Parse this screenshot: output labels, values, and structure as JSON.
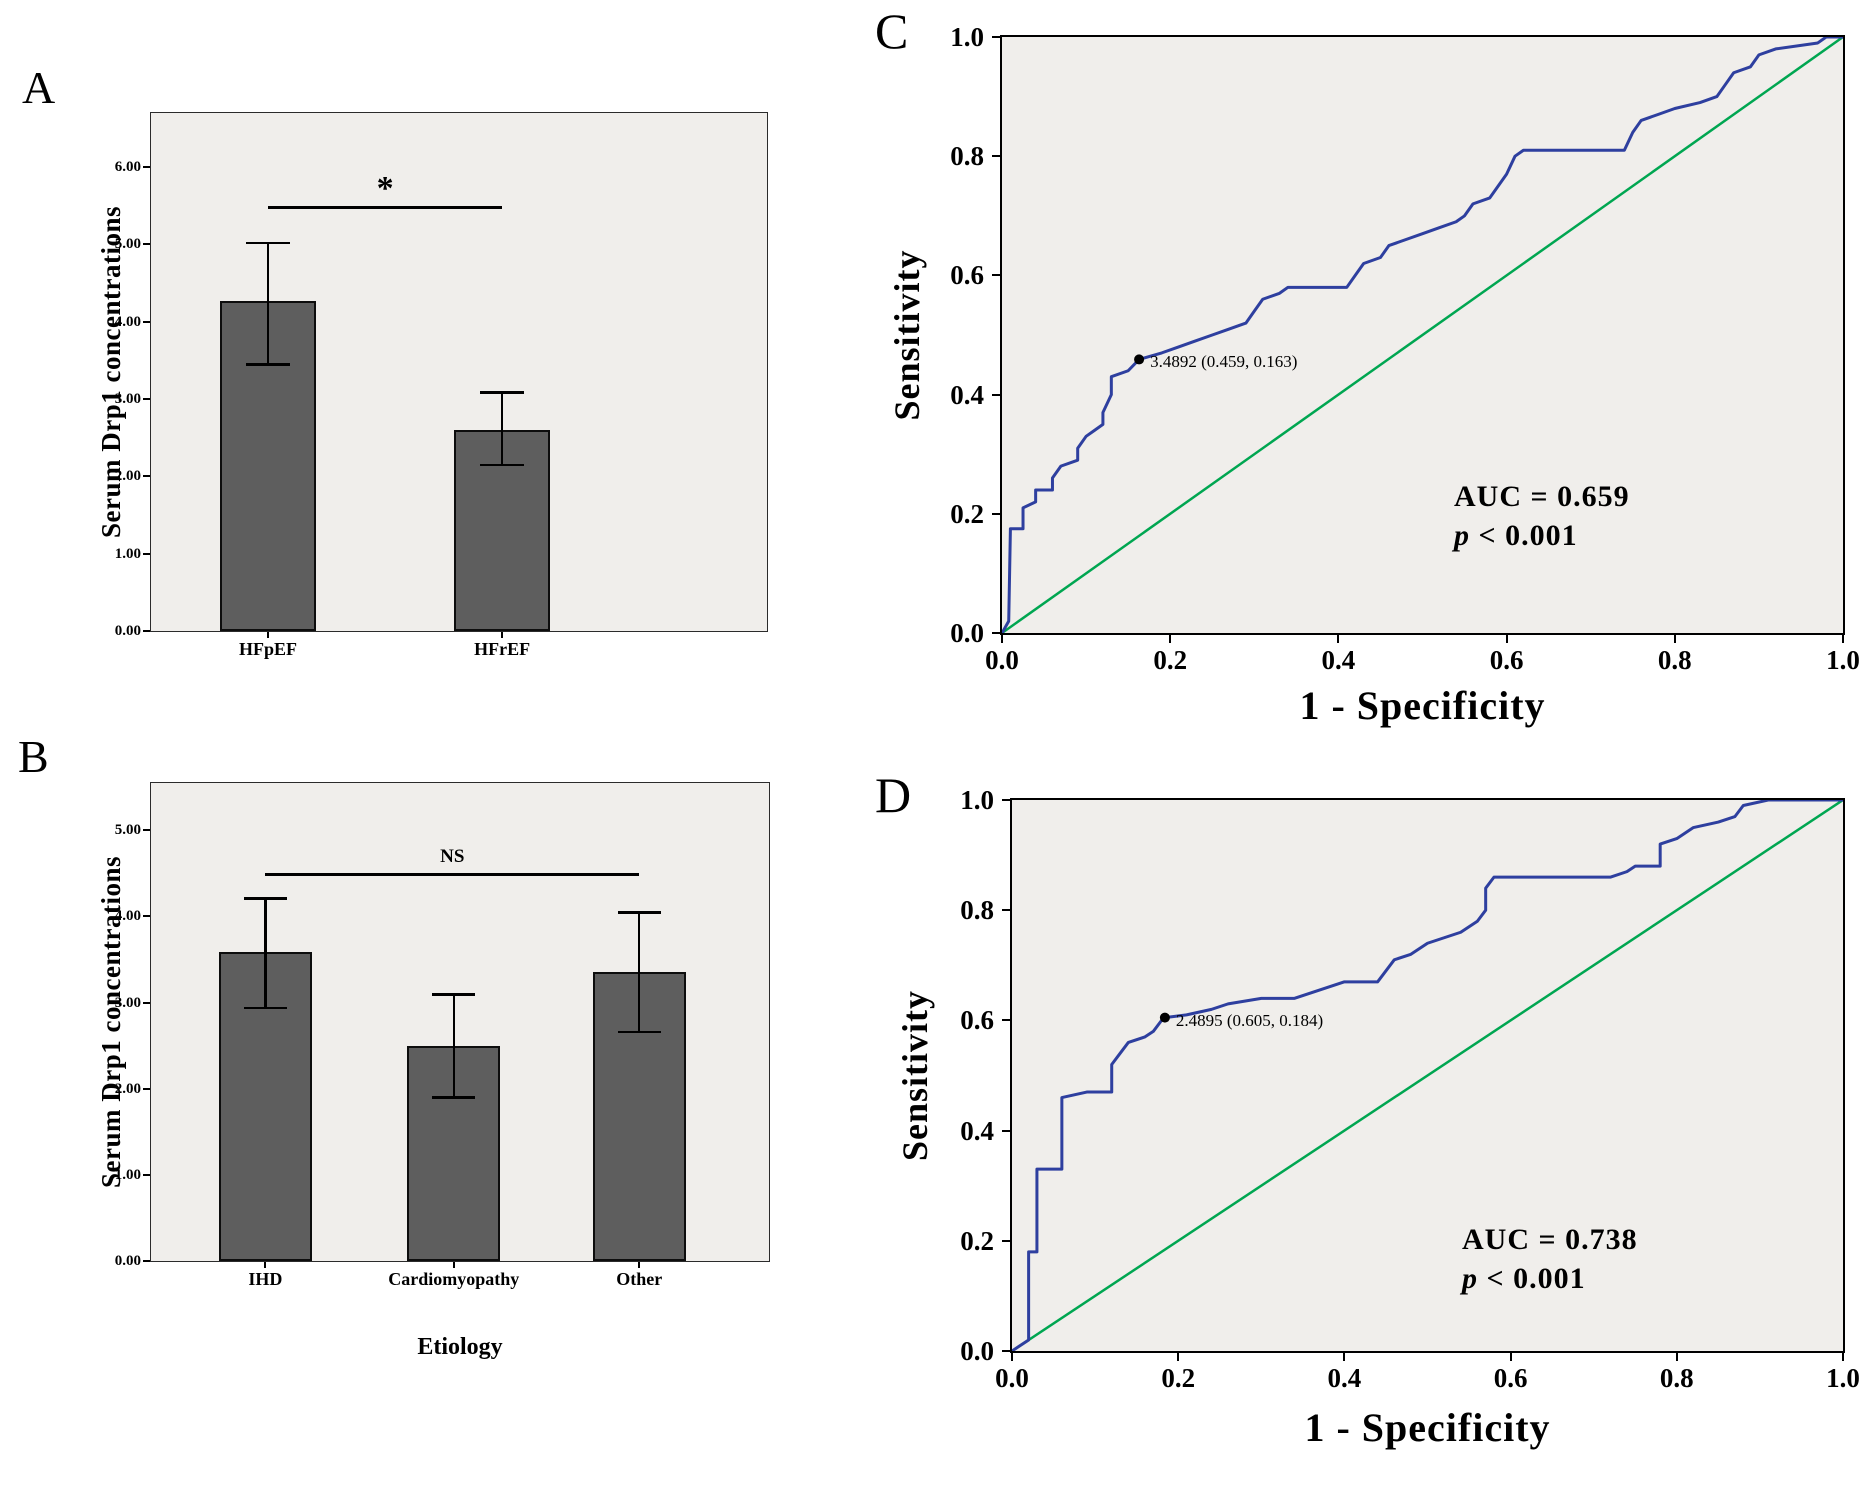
{
  "chart_data": [
    {
      "panel": "A",
      "type": "bar",
      "ylabel": "Serum Drp1 concentrations",
      "categories": [
        "HFpEF",
        "HFrEF"
      ],
      "values": [
        4.27,
        2.6
      ],
      "error_low": [
        3.45,
        2.15
      ],
      "error_high": [
        5.02,
        3.09
      ],
      "ylim": [
        0,
        6.7
      ],
      "yticks": [
        0,
        1,
        2,
        3,
        4,
        5,
        6
      ],
      "ytick_labels": [
        "0.00",
        "1.00",
        "2.00",
        "3.00",
        "4.00",
        "5.00",
        "6.00"
      ],
      "bar_centers": [
        0.19,
        0.57
      ],
      "bar_width_frac": 0.155,
      "bar_color": "#5e5e5e",
      "significance": {
        "label": "*",
        "y": 5.5,
        "from": 0,
        "to": 1
      },
      "grid": false
    },
    {
      "panel": "B",
      "type": "bar",
      "ylabel": "Serum Drp1 concentrations",
      "xlabel": "Etiology",
      "categories": [
        "IHD",
        "Cardiomyopathy",
        "Other"
      ],
      "values": [
        3.59,
        2.5,
        3.36
      ],
      "error_low": [
        2.94,
        1.9,
        2.66
      ],
      "error_high": [
        4.21,
        3.1,
        4.05
      ],
      "ylim": [
        0,
        5.55
      ],
      "yticks": [
        0,
        1,
        2,
        3,
        4,
        5
      ],
      "ytick_labels": [
        "0.00",
        "1.00",
        "2.00",
        "3.00",
        "4.00",
        "5.00"
      ],
      "bar_centers": [
        0.185,
        0.49,
        0.79
      ],
      "bar_width_frac": 0.15,
      "bar_color": "#5e5e5e",
      "significance": {
        "label": "NS",
        "y": 4.5,
        "from": 0,
        "to": 2
      },
      "grid": false
    },
    {
      "panel": "C",
      "type": "line",
      "subtype": "roc",
      "ylabel": "Sensitivity",
      "xlabel": "1 - Specificity",
      "xlim": [
        0,
        1
      ],
      "ylim": [
        0,
        1
      ],
      "xtick_labels": [
        "0.0",
        "0.2",
        "0.4",
        "0.6",
        "0.8",
        "1.0"
      ],
      "ytick_labels": [
        "0.0",
        "0.2",
        "0.4",
        "0.6",
        "0.8",
        "1.0"
      ],
      "auc_label": "AUC = 0.659",
      "p_prefix": "p",
      "p_suffix": " < 0.001",
      "curve_color": "#2e3f9f",
      "reference_color": "#00a651",
      "cutoff": {
        "x": 0.163,
        "y": 0.459,
        "label": "3.4892 (0.459, 0.163)"
      },
      "reference_line": [
        [
          0,
          0
        ],
        [
          1,
          1
        ]
      ],
      "curve": [
        [
          0,
          0
        ],
        [
          0.008,
          0.02
        ],
        [
          0.01,
          0.175
        ],
        [
          0.025,
          0.175
        ],
        [
          0.025,
          0.21
        ],
        [
          0.04,
          0.22
        ],
        [
          0.04,
          0.24
        ],
        [
          0.06,
          0.24
        ],
        [
          0.06,
          0.26
        ],
        [
          0.07,
          0.28
        ],
        [
          0.09,
          0.29
        ],
        [
          0.09,
          0.31
        ],
        [
          0.1,
          0.33
        ],
        [
          0.11,
          0.34
        ],
        [
          0.12,
          0.35
        ],
        [
          0.12,
          0.37
        ],
        [
          0.13,
          0.4
        ],
        [
          0.13,
          0.43
        ],
        [
          0.15,
          0.44
        ],
        [
          0.163,
          0.459
        ],
        [
          0.19,
          0.47
        ],
        [
          0.21,
          0.48
        ],
        [
          0.23,
          0.49
        ],
        [
          0.25,
          0.5
        ],
        [
          0.27,
          0.51
        ],
        [
          0.29,
          0.52
        ],
        [
          0.3,
          0.54
        ],
        [
          0.31,
          0.56
        ],
        [
          0.33,
          0.57
        ],
        [
          0.34,
          0.58
        ],
        [
          0.41,
          0.58
        ],
        [
          0.42,
          0.6
        ],
        [
          0.43,
          0.62
        ],
        [
          0.45,
          0.63
        ],
        [
          0.46,
          0.65
        ],
        [
          0.48,
          0.66
        ],
        [
          0.5,
          0.67
        ],
        [
          0.52,
          0.68
        ],
        [
          0.54,
          0.69
        ],
        [
          0.55,
          0.7
        ],
        [
          0.56,
          0.72
        ],
        [
          0.58,
          0.73
        ],
        [
          0.59,
          0.75
        ],
        [
          0.6,
          0.77
        ],
        [
          0.61,
          0.8
        ],
        [
          0.62,
          0.81
        ],
        [
          0.74,
          0.81
        ],
        [
          0.75,
          0.84
        ],
        [
          0.76,
          0.86
        ],
        [
          0.78,
          0.87
        ],
        [
          0.8,
          0.88
        ],
        [
          0.83,
          0.89
        ],
        [
          0.85,
          0.9
        ],
        [
          0.86,
          0.92
        ],
        [
          0.87,
          0.94
        ],
        [
          0.89,
          0.95
        ],
        [
          0.9,
          0.97
        ],
        [
          0.92,
          0.98
        ],
        [
          0.97,
          0.99
        ],
        [
          0.98,
          1
        ],
        [
          1,
          1
        ]
      ]
    },
    {
      "panel": "D",
      "type": "line",
      "subtype": "roc",
      "ylabel": "Sensitivity",
      "xlabel": "1 - Specificity",
      "xlim": [
        0,
        1
      ],
      "ylim": [
        0,
        1
      ],
      "xtick_labels": [
        "0.0",
        "0.2",
        "0.4",
        "0.6",
        "0.8",
        "1.0"
      ],
      "ytick_labels": [
        "0.0",
        "0.2",
        "0.4",
        "0.6",
        "0.8",
        "1.0"
      ],
      "auc_label": "AUC = 0.738",
      "p_prefix": "p",
      "p_suffix": " < 0.001",
      "curve_color": "#2e3f9f",
      "reference_color": "#00a651",
      "cutoff": {
        "x": 0.184,
        "y": 0.605,
        "label": "2.4895 (0.605, 0.184)"
      },
      "reference_line": [
        [
          0,
          0
        ],
        [
          1,
          1
        ]
      ],
      "curve": [
        [
          0,
          0
        ],
        [
          0.02,
          0.02
        ],
        [
          0.02,
          0.18
        ],
        [
          0.03,
          0.18
        ],
        [
          0.03,
          0.33
        ],
        [
          0.06,
          0.33
        ],
        [
          0.06,
          0.46
        ],
        [
          0.09,
          0.47
        ],
        [
          0.12,
          0.47
        ],
        [
          0.12,
          0.52
        ],
        [
          0.13,
          0.54
        ],
        [
          0.14,
          0.56
        ],
        [
          0.16,
          0.57
        ],
        [
          0.17,
          0.58
        ],
        [
          0.18,
          0.6
        ],
        [
          0.184,
          0.605
        ],
        [
          0.21,
          0.61
        ],
        [
          0.24,
          0.62
        ],
        [
          0.26,
          0.63
        ],
        [
          0.3,
          0.64
        ],
        [
          0.34,
          0.64
        ],
        [
          0.36,
          0.65
        ],
        [
          0.38,
          0.66
        ],
        [
          0.4,
          0.67
        ],
        [
          0.44,
          0.67
        ],
        [
          0.45,
          0.69
        ],
        [
          0.46,
          0.71
        ],
        [
          0.48,
          0.72
        ],
        [
          0.5,
          0.74
        ],
        [
          0.52,
          0.75
        ],
        [
          0.54,
          0.76
        ],
        [
          0.56,
          0.78
        ],
        [
          0.57,
          0.8
        ],
        [
          0.57,
          0.84
        ],
        [
          0.58,
          0.86
        ],
        [
          0.72,
          0.86
        ],
        [
          0.74,
          0.87
        ],
        [
          0.75,
          0.88
        ],
        [
          0.78,
          0.88
        ],
        [
          0.78,
          0.92
        ],
        [
          0.8,
          0.93
        ],
        [
          0.82,
          0.95
        ],
        [
          0.85,
          0.96
        ],
        [
          0.87,
          0.97
        ],
        [
          0.88,
          0.99
        ],
        [
          0.91,
          1
        ],
        [
          1,
          1
        ]
      ]
    }
  ]
}
